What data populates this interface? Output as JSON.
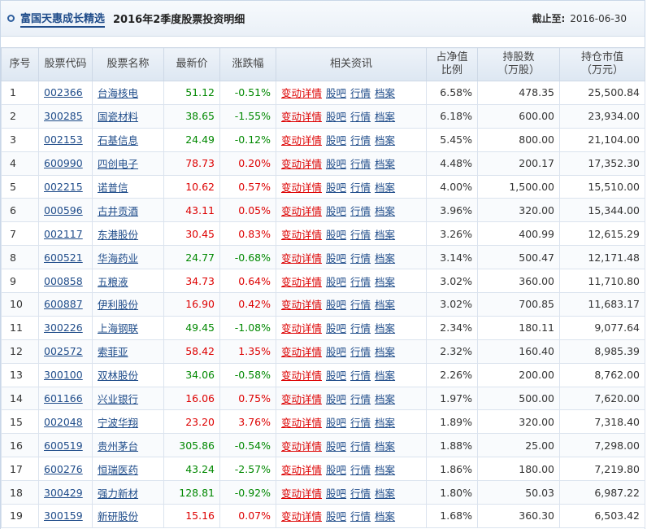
{
  "header": {
    "fund_name": "富国天惠成长精选",
    "subtitle": "2016年2季度股票投资明细",
    "asof_label": "截止至:",
    "asof_date": "2016-06-30"
  },
  "columns": [
    "序号",
    "股票代码",
    "股票名称",
    "最新价",
    "涨跌幅",
    "相关资讯",
    "占净值比例",
    "持股数（万股）",
    "持仓市值（万元）"
  ],
  "column_lines": {
    "ratio": [
      "占净值",
      "比例"
    ],
    "shares": [
      "持股数",
      "（万股）"
    ],
    "value": [
      "持仓市值",
      "（万元）"
    ]
  },
  "link_labels": {
    "change": "变动详情",
    "bar": "股吧",
    "quote": "行情",
    "archive": "档案"
  },
  "colors": {
    "up": "#dd0000",
    "down": "#008800",
    "link": "#1f4c8a"
  },
  "rows": [
    {
      "idx": "1",
      "code": "002366",
      "name": "台海核电",
      "price": "51.12",
      "chg": "-0.51%",
      "dir": "down",
      "ratio": "6.58%",
      "shares": "478.35",
      "value": "25,500.84"
    },
    {
      "idx": "2",
      "code": "300285",
      "name": "国瓷材料",
      "price": "38.65",
      "chg": "-1.55%",
      "dir": "down",
      "ratio": "6.18%",
      "shares": "600.00",
      "value": "23,934.00"
    },
    {
      "idx": "3",
      "code": "002153",
      "name": "石基信息",
      "price": "24.49",
      "chg": "-0.12%",
      "dir": "down",
      "ratio": "5.45%",
      "shares": "800.00",
      "value": "21,104.00"
    },
    {
      "idx": "4",
      "code": "600990",
      "name": "四创电子",
      "price": "78.73",
      "chg": "0.20%",
      "dir": "up",
      "ratio": "4.48%",
      "shares": "200.17",
      "value": "17,352.30"
    },
    {
      "idx": "5",
      "code": "002215",
      "name": "诺普信",
      "price": "10.62",
      "chg": "0.57%",
      "dir": "up",
      "ratio": "4.00%",
      "shares": "1,500.00",
      "value": "15,510.00"
    },
    {
      "idx": "6",
      "code": "000596",
      "name": "古井贡酒",
      "price": "43.11",
      "chg": "0.05%",
      "dir": "up",
      "ratio": "3.96%",
      "shares": "320.00",
      "value": "15,344.00"
    },
    {
      "idx": "7",
      "code": "002117",
      "name": "东港股份",
      "price": "30.45",
      "chg": "0.83%",
      "dir": "up",
      "ratio": "3.26%",
      "shares": "400.99",
      "value": "12,615.29"
    },
    {
      "idx": "8",
      "code": "600521",
      "name": "华海药业",
      "price": "24.77",
      "chg": "-0.68%",
      "dir": "down",
      "ratio": "3.14%",
      "shares": "500.47",
      "value": "12,171.48"
    },
    {
      "idx": "9",
      "code": "000858",
      "name": "五粮液",
      "price": "34.73",
      "chg": "0.64%",
      "dir": "up",
      "ratio": "3.02%",
      "shares": "360.00",
      "value": "11,710.80"
    },
    {
      "idx": "10",
      "code": "600887",
      "name": "伊利股份",
      "price": "16.90",
      "chg": "0.42%",
      "dir": "up",
      "ratio": "3.02%",
      "shares": "700.85",
      "value": "11,683.17"
    },
    {
      "idx": "11",
      "code": "300226",
      "name": "上海钢联",
      "price": "49.45",
      "chg": "-1.08%",
      "dir": "down",
      "ratio": "2.34%",
      "shares": "180.11",
      "value": "9,077.64"
    },
    {
      "idx": "12",
      "code": "002572",
      "name": "索菲亚",
      "price": "58.42",
      "chg": "1.35%",
      "dir": "up",
      "ratio": "2.32%",
      "shares": "160.40",
      "value": "8,985.39"
    },
    {
      "idx": "13",
      "code": "300100",
      "name": "双林股份",
      "price": "34.06",
      "chg": "-0.58%",
      "dir": "down",
      "ratio": "2.26%",
      "shares": "200.00",
      "value": "8,762.00"
    },
    {
      "idx": "14",
      "code": "601166",
      "name": "兴业银行",
      "price": "16.06",
      "chg": "0.75%",
      "dir": "up",
      "ratio": "1.97%",
      "shares": "500.00",
      "value": "7,620.00"
    },
    {
      "idx": "15",
      "code": "002048",
      "name": "宁波华翔",
      "price": "23.20",
      "chg": "3.76%",
      "dir": "up",
      "ratio": "1.89%",
      "shares": "320.00",
      "value": "7,318.40"
    },
    {
      "idx": "16",
      "code": "600519",
      "name": "贵州茅台",
      "price": "305.86",
      "chg": "-0.54%",
      "dir": "down",
      "ratio": "1.88%",
      "shares": "25.00",
      "value": "7,298.00"
    },
    {
      "idx": "17",
      "code": "600276",
      "name": "恒瑞医药",
      "price": "43.24",
      "chg": "-2.57%",
      "dir": "down",
      "ratio": "1.86%",
      "shares": "180.00",
      "value": "7,219.80"
    },
    {
      "idx": "18",
      "code": "300429",
      "name": "强力新材",
      "price": "128.81",
      "chg": "-0.92%",
      "dir": "down",
      "ratio": "1.80%",
      "shares": "50.03",
      "value": "6,987.22"
    },
    {
      "idx": "19",
      "code": "300159",
      "name": "新研股份",
      "price": "15.16",
      "chg": "0.07%",
      "dir": "up",
      "ratio": "1.68%",
      "shares": "360.30",
      "value": "6,503.42"
    }
  ]
}
